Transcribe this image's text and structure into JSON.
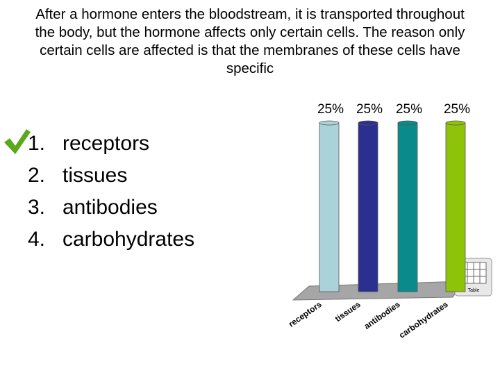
{
  "question": "After a hormone enters the bloodstream, it is transported throughout the body, but the hormone affects only certain cells. The reason only certain cells are affected is that the membranes of these cells have specific",
  "options": [
    {
      "number": "1.",
      "text": "receptors"
    },
    {
      "number": "2.",
      "text": "tissues"
    },
    {
      "number": "3.",
      "text": "antibodies"
    },
    {
      "number": "4.",
      "text": "carbohydrates"
    }
  ],
  "table_button": "Table",
  "chart_data": {
    "type": "bar",
    "categories": [
      "receptors",
      "tissues",
      "antibodies",
      "carbohydrates"
    ],
    "values": [
      25,
      25,
      25,
      25
    ],
    "value_labels": [
      "25%",
      "25%",
      "25%",
      "25%"
    ],
    "colors": [
      "#a9d3d9",
      "#2b2f8f",
      "#0b8a8c",
      "#8dc40a"
    ],
    "ylim": [
      0,
      25
    ]
  }
}
